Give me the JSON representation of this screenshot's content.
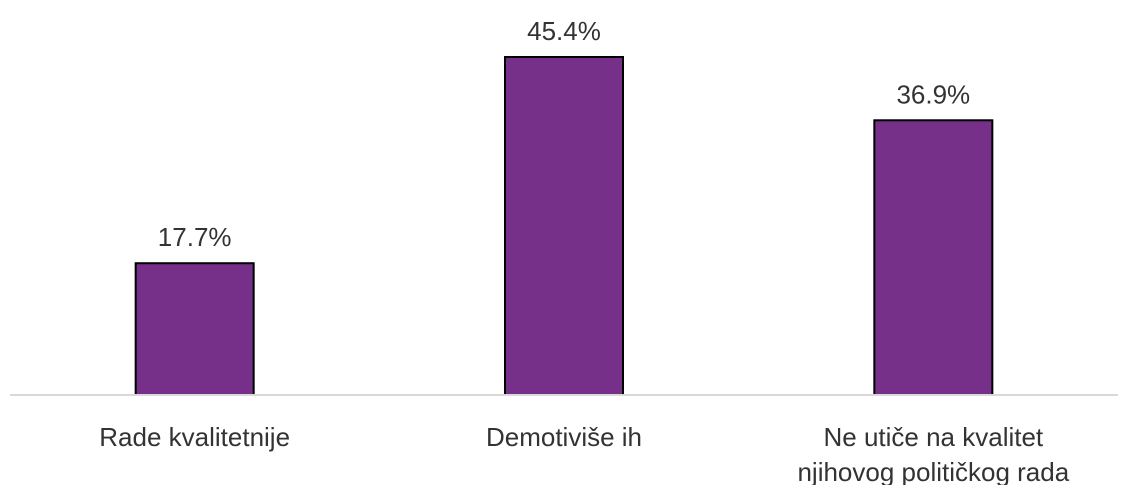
{
  "chart_data": {
    "type": "bar",
    "categories": [
      [
        "Rade kvalitetnije"
      ],
      [
        "Demotiviše ih"
      ],
      [
        "Ne utiče na kvalitet",
        "njihovog političkog rada"
      ]
    ],
    "values": [
      17.7,
      45.4,
      36.9
    ],
    "value_labels": [
      "17.7%",
      "45.4%",
      "36.9%"
    ],
    "unit": "%",
    "title": "",
    "xlabel": "",
    "ylabel": "",
    "ylim": [
      0,
      50
    ],
    "grid": false,
    "legend": "none",
    "colors": {
      "bar": "#76308A",
      "bar_outline": "#000000",
      "axis": "#D9D9D9",
      "text": "#333333"
    }
  }
}
